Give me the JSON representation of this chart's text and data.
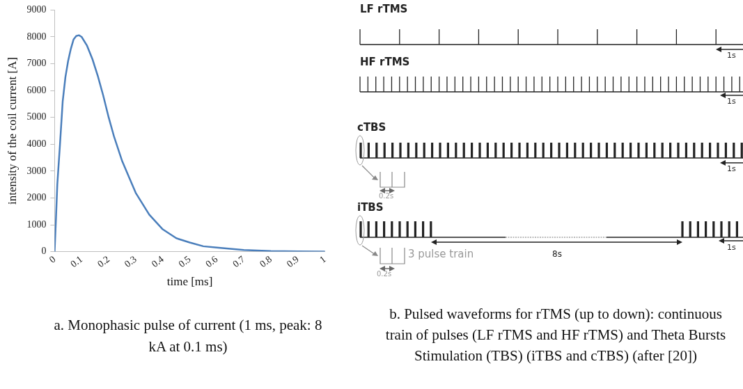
{
  "chart_data": [
    {
      "type": "line",
      "title": "a. Monophasic pulse of current (1 ms, peak: 8 kA at 0.1 ms)",
      "xlabel": "time [ms]",
      "ylabel": "intensity of the coil current [A]",
      "x": [
        0,
        0.005,
        0.01,
        0.02,
        0.03,
        0.04,
        0.05,
        0.06,
        0.07,
        0.08,
        0.09,
        0.1,
        0.12,
        0.14,
        0.16,
        0.18,
        0.2,
        0.22,
        0.25,
        0.3,
        0.35,
        0.4,
        0.45,
        0.5,
        0.55,
        0.6,
        0.7,
        0.8,
        0.9,
        1
      ],
      "series": [
        {
          "color": "#4a7ebb",
          "values": [
            0,
            1200,
            2500,
            4000,
            5600,
            6500,
            7100,
            7550,
            7900,
            8030,
            8060,
            8000,
            7670,
            7170,
            6540,
            5810,
            5000,
            4280,
            3370,
            2190,
            1380,
            830,
            500,
            340,
            200,
            150,
            60,
            20,
            10,
            5
          ]
        }
      ],
      "xlim": [
        0,
        1
      ],
      "xticks": [
        0,
        0.1,
        0.2,
        0.3,
        0.4,
        0.5,
        0.6,
        0.7,
        0.8,
        0.9,
        1
      ],
      "ylim": [
        0,
        9000
      ],
      "yticks": [
        0,
        1000,
        2000,
        3000,
        4000,
        5000,
        6000,
        7000,
        8000,
        9000
      ],
      "grid": false,
      "legend": false,
      "marker": "none",
      "line_style": "solid"
    },
    {
      "type": "other",
      "title": "b. Pulsed waveforms for rTMS (up to down): continuous train of pulses (LF rTMS and HF rTMS) and Theta Bursts Stimulation (TBS) (iTBS and cTBS) (after [20])",
      "annotations": [
        "LF rTMS",
        "1s",
        "HF rTMS",
        "1s",
        "cTBS",
        "1s",
        "0.2s",
        "iTBS",
        "3 pulse train",
        "8s",
        "1s",
        "0.2s"
      ]
    }
  ]
}
